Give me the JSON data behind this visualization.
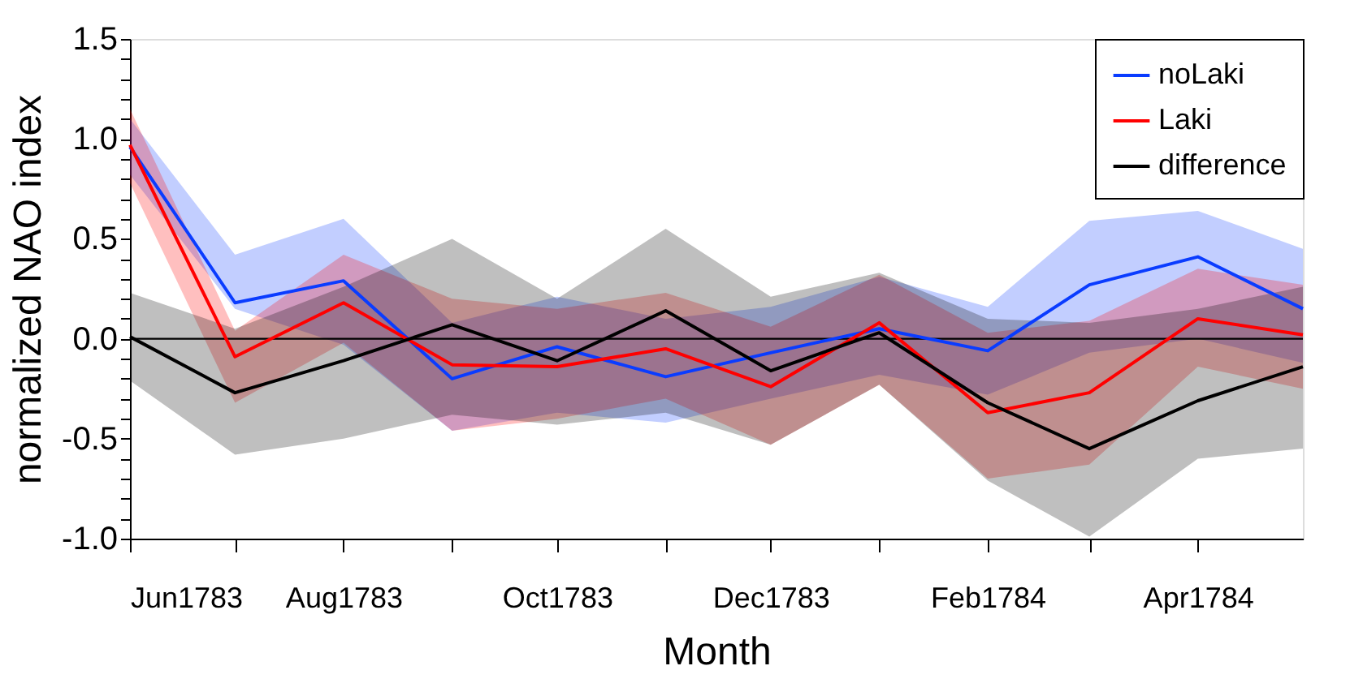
{
  "chart_data": {
    "type": "line",
    "xlabel": "Month",
    "ylabel": "normalized NAO index",
    "x": [
      "1783-06",
      "1783-07",
      "1783-08",
      "1783-09",
      "1783-10",
      "1783-11",
      "1783-12",
      "1784-01",
      "1784-02",
      "1784-03",
      "1784-04",
      "1784-05"
    ],
    "xlim": [
      "1783-06",
      "1784-05"
    ],
    "xticks": [
      {
        "value": "1783-06",
        "label": "Jun1783"
      },
      {
        "value": "1783-07",
        "label": null
      },
      {
        "value": "1783-08",
        "label": "Aug1783"
      },
      {
        "value": "1783-09",
        "label": null
      },
      {
        "value": "1783-10",
        "label": "Oct1783"
      },
      {
        "value": "1783-11",
        "label": null
      },
      {
        "value": "1783-12",
        "label": "Dec1783"
      },
      {
        "value": "1784-01",
        "label": null
      },
      {
        "value": "1784-02",
        "label": "Feb1784"
      },
      {
        "value": "1784-03",
        "label": null
      },
      {
        "value": "1784-04",
        "label": "Apr1784"
      }
    ],
    "ylim": [
      -1.0,
      1.5
    ],
    "yticks": [
      {
        "value": -1.0,
        "label": "-1.0"
      },
      {
        "value": -0.9,
        "label": null
      },
      {
        "value": -0.8,
        "label": null
      },
      {
        "value": -0.7,
        "label": null
      },
      {
        "value": -0.6,
        "label": null
      },
      {
        "value": -0.5,
        "label": "-0.5"
      },
      {
        "value": -0.4,
        "label": null
      },
      {
        "value": -0.3,
        "label": null
      },
      {
        "value": -0.2,
        "label": null
      },
      {
        "value": -0.1,
        "label": null
      },
      {
        "value": 0.0,
        "label": "0.0"
      },
      {
        "value": 0.1,
        "label": null
      },
      {
        "value": 0.2,
        "label": null
      },
      {
        "value": 0.3,
        "label": null
      },
      {
        "value": 0.4,
        "label": null
      },
      {
        "value": 0.5,
        "label": "0.5"
      },
      {
        "value": 0.6,
        "label": null
      },
      {
        "value": 0.7,
        "label": null
      },
      {
        "value": 0.8,
        "label": null
      },
      {
        "value": 0.9,
        "label": null
      },
      {
        "value": 1.0,
        "label": "1.0"
      },
      {
        "value": 1.1,
        "label": null
      },
      {
        "value": 1.2,
        "label": null
      },
      {
        "value": 1.3,
        "label": null
      },
      {
        "value": 1.4,
        "label": null
      },
      {
        "value": 1.5,
        "label": "1.5"
      }
    ],
    "series": [
      {
        "name": "noLaki",
        "color": "#0a3cff",
        "values": [
          0.96,
          0.18,
          0.29,
          -0.2,
          -0.04,
          -0.19,
          -0.07,
          0.05,
          -0.06,
          0.27,
          0.41,
          0.15
        ],
        "upper": [
          1.1,
          0.42,
          0.6,
          0.08,
          0.21,
          0.1,
          0.16,
          0.31,
          0.16,
          0.59,
          0.64,
          0.45
        ],
        "lower": [
          0.82,
          0.15,
          -0.03,
          -0.46,
          -0.37,
          -0.42,
          -0.3,
          -0.18,
          -0.28,
          -0.07,
          0.0,
          -0.12
        ]
      },
      {
        "name": "Laki",
        "color": "#ff0000",
        "values": [
          0.97,
          -0.09,
          0.18,
          -0.13,
          -0.14,
          -0.05,
          -0.24,
          0.08,
          -0.37,
          -0.27,
          0.1,
          0.02
        ],
        "upper": [
          1.15,
          0.04,
          0.42,
          0.2,
          0.15,
          0.23,
          0.06,
          0.32,
          0.03,
          0.09,
          0.35,
          0.27
        ],
        "lower": [
          0.78,
          -0.32,
          -0.02,
          -0.46,
          -0.4,
          -0.3,
          -0.53,
          -0.23,
          -0.7,
          -0.63,
          -0.14,
          -0.25
        ]
      },
      {
        "name": "difference",
        "color": "#000000",
        "values": [
          0.01,
          -0.27,
          -0.11,
          0.07,
          -0.11,
          0.14,
          -0.16,
          0.03,
          -0.32,
          -0.55,
          -0.31,
          -0.14
        ],
        "upper": [
          0.23,
          0.05,
          0.26,
          0.5,
          0.2,
          0.55,
          0.21,
          0.33,
          0.1,
          0.08,
          0.15,
          0.26
        ],
        "lower": [
          -0.21,
          -0.58,
          -0.5,
          -0.38,
          -0.43,
          -0.37,
          -0.53,
          -0.23,
          -0.71,
          -0.99,
          -0.6,
          -0.55
        ]
      }
    ],
    "ref_lines": [
      {
        "axis": "y",
        "value": 0,
        "color": "#000000"
      }
    ],
    "legend": "top right",
    "grid": false,
    "marker": "none",
    "line_style": "solid"
  }
}
